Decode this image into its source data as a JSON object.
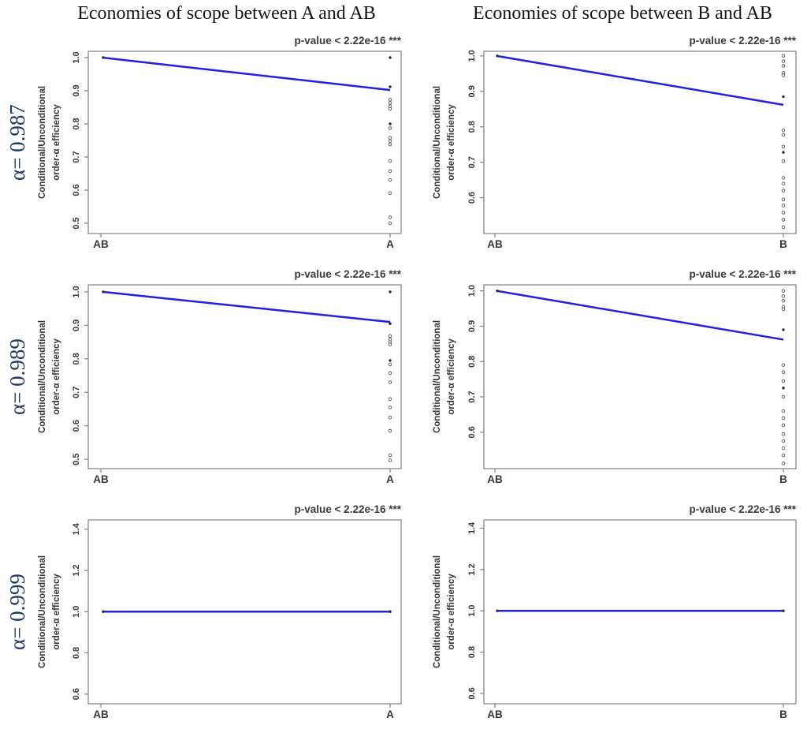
{
  "column_titles": [
    {
      "text": "Economies of scope between A and AB"
    },
    {
      "text": "Economies of scope between B and AB"
    }
  ],
  "row_labels": [
    {
      "text": "α= 0.987"
    },
    {
      "text": "α= 0.989"
    },
    {
      "text": "α= 0.999"
    }
  ],
  "colors": {
    "line": "#1414e6",
    "axis": "#808080",
    "tick_text": "#383838",
    "pvalue_text": "#3a3a3a",
    "title_text": "#151515",
    "alpha_label": "#1f3864",
    "marker_dark": "#2b2b2b",
    "marker_open_stroke": "#555555"
  },
  "chart_data": [
    {
      "name": "alpha-0987-A-vs-AB",
      "type": "line",
      "row": 0,
      "col": 0,
      "annotation": "p-value < 2.22e-16 ***",
      "ylabel": [
        "Conditional/Unconditional",
        "order-α efficiency"
      ],
      "x_categories": [
        "AB",
        "A"
      ],
      "yticks": [
        0.5,
        0.6,
        0.7,
        0.8,
        0.9,
        1.0
      ],
      "ylim": [
        0.469,
        1.019
      ],
      "line": {
        "from": 1.0,
        "to": 0.902
      },
      "end_points_dark": [
        1.0,
        0.912,
        0.8
      ],
      "end_points_open": [
        0.873,
        0.863,
        0.853,
        0.845,
        0.787,
        0.758,
        0.748,
        0.738,
        0.688,
        0.657,
        0.631,
        0.591,
        0.518,
        0.5
      ]
    },
    {
      "name": "alpha-0987-B-vs-AB",
      "type": "line",
      "row": 0,
      "col": 1,
      "annotation": "p-value < 2.22e-16 ***",
      "ylabel": [
        "Conditional/Unconditional",
        "order-α efficiency"
      ],
      "x_categories": [
        "AB",
        "B"
      ],
      "yticks": [
        0.6,
        0.7,
        0.8,
        0.9,
        1.0
      ],
      "ylim": [
        0.499,
        1.013
      ],
      "line": {
        "from": 1.0,
        "to": 0.862
      },
      "end_points_dark": [
        0.885,
        0.728
      ],
      "end_points_open": [
        1.0,
        0.985,
        0.972,
        0.952,
        0.945,
        0.79,
        0.777,
        0.744,
        0.703,
        0.656,
        0.64,
        0.62,
        0.595,
        0.578,
        0.558,
        0.538,
        0.517
      ]
    },
    {
      "name": "alpha-0989-A-vs-AB",
      "type": "line",
      "row": 1,
      "col": 0,
      "annotation": "p-value < 2.22e-16 ***",
      "ylabel": [
        "Conditional/Unconditional",
        "order-α efficiency"
      ],
      "x_categories": [
        "AB",
        "A"
      ],
      "yticks": [
        0.5,
        0.6,
        0.7,
        0.8,
        0.9,
        1.0
      ],
      "ylim": [
        0.472,
        1.021
      ],
      "line": {
        "from": 1.0,
        "to": 0.91
      },
      "end_points_dark": [
        1.0,
        0.905,
        0.795
      ],
      "end_points_open": [
        0.868,
        0.858,
        0.85,
        0.843,
        0.783,
        0.757,
        0.73,
        0.68,
        0.655,
        0.625,
        0.585,
        0.512,
        0.497
      ]
    },
    {
      "name": "alpha-0989-B-vs-AB",
      "type": "line",
      "row": 1,
      "col": 1,
      "annotation": "p-value < 2.22e-16 ***",
      "ylabel": [
        "Conditional/Unconditional",
        "order-α efficiency"
      ],
      "x_categories": [
        "AB",
        "B"
      ],
      "yticks": [
        0.6,
        0.7,
        0.8,
        0.9,
        1.0
      ],
      "ylim": [
        0.497,
        1.017
      ],
      "line": {
        "from": 1.0,
        "to": 0.862
      },
      "end_points_dark": [
        0.89,
        0.725
      ],
      "end_points_open": [
        1.0,
        0.985,
        0.972,
        0.955,
        0.948,
        0.79,
        0.77,
        0.745,
        0.7,
        0.66,
        0.64,
        0.62,
        0.595,
        0.575,
        0.555,
        0.535,
        0.512
      ]
    },
    {
      "name": "alpha-0999-A-vs-AB",
      "type": "line",
      "row": 2,
      "col": 0,
      "annotation": "p-value < 2.22e-16 ***",
      "ylabel": [
        "Conditional/Unconditional",
        "order-α efficiency"
      ],
      "x_categories": [
        "AB",
        "A"
      ],
      "yticks": [
        0.6,
        0.8,
        1.0,
        1.2,
        1.4
      ],
      "ylim": [
        0.553,
        1.445
      ],
      "line": {
        "from": 1.0,
        "to": 1.0
      },
      "end_points_dark": [
        1.0
      ],
      "end_points_open": []
    },
    {
      "name": "alpha-0999-B-vs-AB",
      "type": "line",
      "row": 2,
      "col": 1,
      "annotation": "p-value < 2.22e-16 ***",
      "ylabel": [
        "Conditional/Unconditional",
        "order-α efficiency"
      ],
      "x_categories": [
        "AB",
        "B"
      ],
      "yticks": [
        0.6,
        0.8,
        1.0,
        1.2,
        1.4
      ],
      "ylim": [
        0.55,
        1.44
      ],
      "line": {
        "from": 1.0,
        "to": 1.0
      },
      "end_points_dark": [
        1.0
      ],
      "end_points_open": []
    }
  ]
}
